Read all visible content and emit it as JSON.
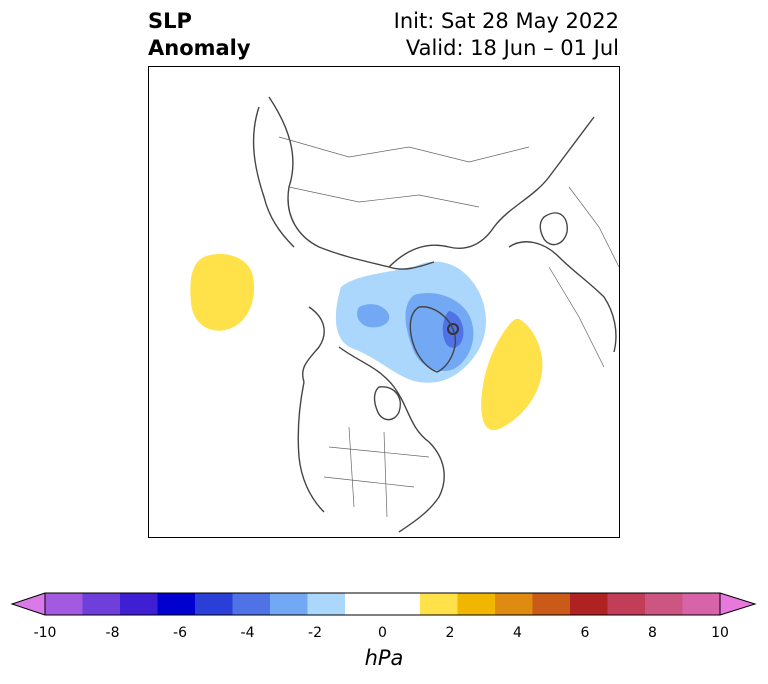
{
  "title": {
    "left_line1": "SLP",
    "left_line2": "Anomaly",
    "right_line1": "Init: Sat 28 May 2022",
    "right_line2": "Valid: 18 Jun – 01 Jul"
  },
  "map": {
    "projection": "north polar stereographic",
    "anomaly_features": [
      {
        "label": "positive anomaly",
        "level_hpa": "1 to 2",
        "color": "#ffe14a",
        "region": "western North Pacific / east Asia coast"
      },
      {
        "label": "positive anomaly",
        "level_hpa": "1 to 2",
        "color": "#ffe14a",
        "region": "central North Atlantic"
      },
      {
        "label": "negative anomaly",
        "level_hpa": "-1 to -2",
        "color": "#aad7fb",
        "region": "Arctic / Greenland"
      },
      {
        "label": "negative anomaly",
        "level_hpa": "-2 to -3",
        "color": "#73a8f5",
        "region": "Greenland / Canadian Arctic"
      },
      {
        "label": "negative anomaly",
        "level_hpa": "-3 to -4",
        "color": "#4f72e6",
        "region": "Greenland core"
      }
    ]
  },
  "colorbar": {
    "unit": "hPa",
    "ticks": [
      "-10",
      "-8",
      "-6",
      "-4",
      "-2",
      "0",
      "2",
      "4",
      "6",
      "8",
      "10"
    ],
    "colors": [
      "#d97ae8",
      "#a35ae0",
      "#6f3fdc",
      "#3f1fd4",
      "#0000d0",
      "#2a3fd8",
      "#4f72e6",
      "#73a8f5",
      "#aad7fb",
      "#ffffff",
      "#ffffff",
      "#ffe14a",
      "#f1b600",
      "#df8a10",
      "#c95a18",
      "#b02222",
      "#c23d57",
      "#cd5581",
      "#d764a9",
      "#e978dc"
    ]
  }
}
